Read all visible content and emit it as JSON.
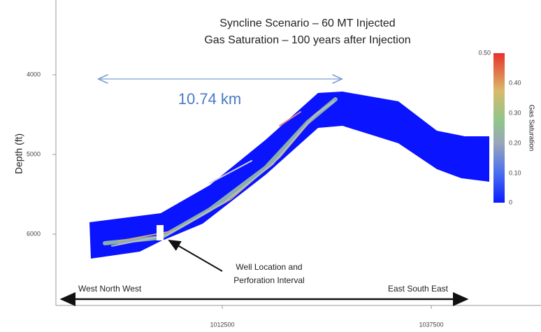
{
  "title": [
    "Syncline Scenario – 60 MT Injected",
    "Gas Saturation – 100 years after Injection"
  ],
  "y_axis": {
    "label": "Depth (ft)",
    "ticks": [
      "4000",
      "5000",
      "6000"
    ]
  },
  "x_axis": {
    "ticks": [
      "1012500",
      "1037500"
    ]
  },
  "colorbar": {
    "label": "Gas Saturation",
    "ticks": [
      "0.50",
      "0.40",
      "0.30",
      "0.20",
      "0.10",
      "0"
    ]
  },
  "annotations": {
    "distance": "10.74 km",
    "well": [
      "Well Location and",
      "Perforation Interval"
    ],
    "west": "West North West",
    "east": "East South East"
  }
}
